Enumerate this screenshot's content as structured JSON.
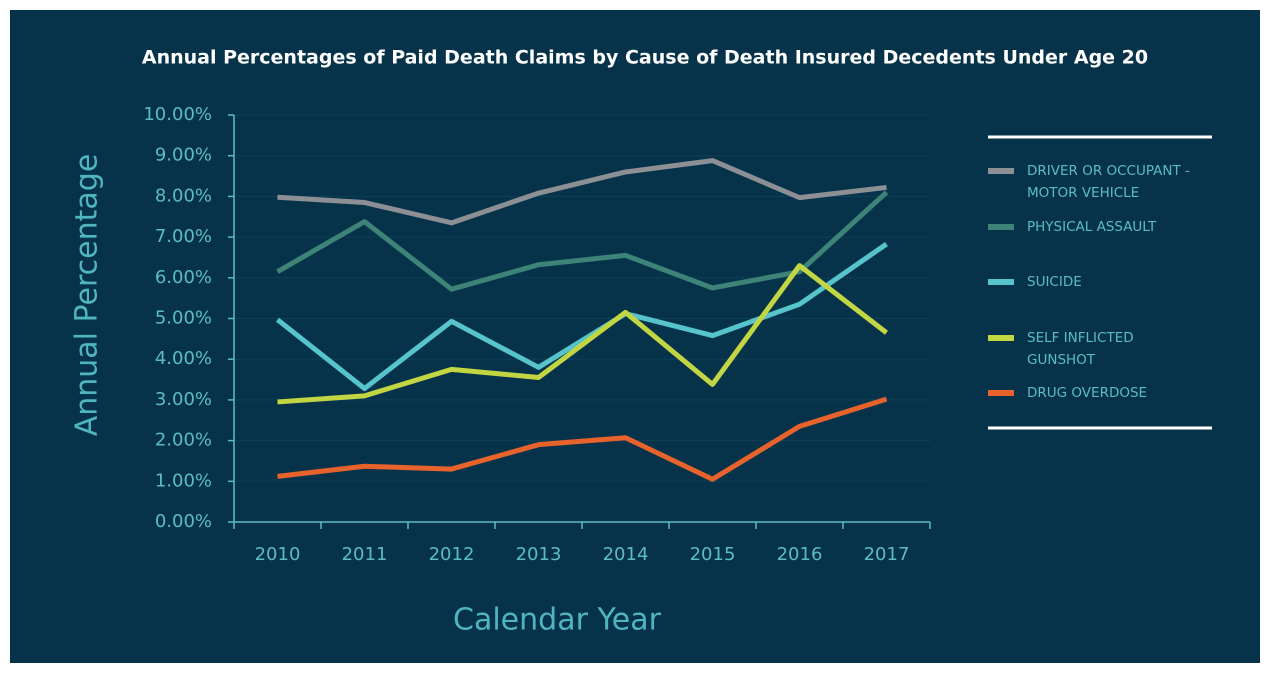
{
  "chart_data": {
    "type": "line",
    "title": "Annual Percentages of Paid Death Claims by Cause of Death Insured Decedents Under Age 20",
    "x_label": "Calendar Year",
    "y_label": "Annual Percentage",
    "categories": [
      "2010",
      "2011",
      "2012",
      "2013",
      "2014",
      "2015",
      "2016",
      "2017"
    ],
    "series": [
      {
        "name": "DRIVER OR OCCUPANT - MOTOR VEHICLE",
        "color": "#8c8f94",
        "values": [
          7.98,
          7.85,
          7.35,
          8.08,
          8.6,
          8.88,
          7.97,
          8.22
        ]
      },
      {
        "name": "PHYSICAL ASSAULT",
        "color": "#3d8378",
        "values": [
          6.15,
          7.38,
          5.72,
          6.32,
          6.55,
          5.75,
          6.15,
          8.1
        ]
      },
      {
        "name": "SUICIDE",
        "color": "#57c3cc",
        "values": [
          4.97,
          3.28,
          4.93,
          3.8,
          5.12,
          4.58,
          5.35,
          6.83
        ]
      },
      {
        "name": "SELF INFLICTED GUNSHOT",
        "color": "#c2d542",
        "values": [
          2.95,
          3.1,
          3.75,
          3.55,
          5.15,
          3.38,
          6.3,
          4.65
        ]
      },
      {
        "name": "DRUG OVERDOSE",
        "color": "#e8622c",
        "values": [
          1.12,
          1.37,
          1.3,
          1.9,
          2.07,
          1.05,
          2.35,
          3.02
        ]
      }
    ],
    "ylim": [
      0,
      10
    ],
    "yticks": [
      {
        "value": 0,
        "label": "0.00%"
      },
      {
        "value": 1,
        "label": "1.00%"
      },
      {
        "value": 2,
        "label": "2.00%"
      },
      {
        "value": 3,
        "label": "3.00%"
      },
      {
        "value": 4,
        "label": "4.00%"
      },
      {
        "value": 5,
        "label": "5.00%"
      },
      {
        "value": 6,
        "label": "6.00%"
      },
      {
        "value": 7,
        "label": "7.00%"
      },
      {
        "value": 8,
        "label": "8.00%"
      },
      {
        "value": 9,
        "label": "9.00%"
      },
      {
        "value": 10,
        "label": "10.00%"
      }
    ],
    "grid": true,
    "legend": "right"
  }
}
